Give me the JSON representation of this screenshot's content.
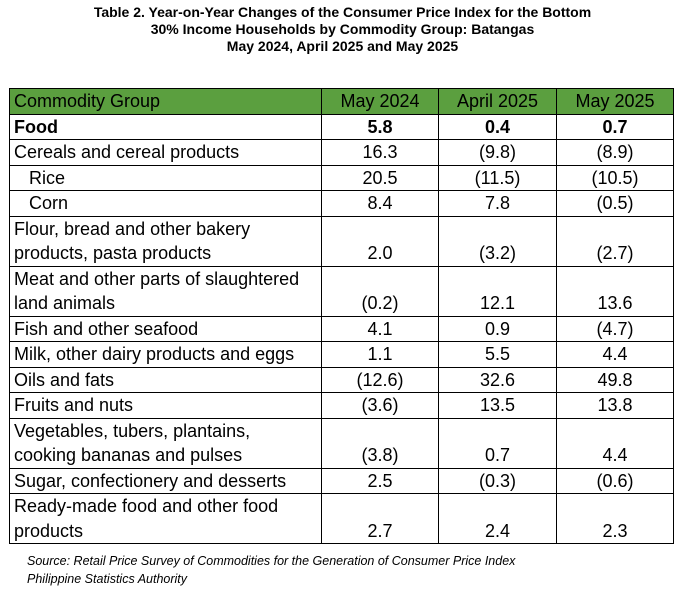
{
  "title": {
    "line1": "Table 2. Year-on-Year Changes of the Consumer Price Index for the Bottom",
    "line2": "30% Income Households by Commodity Group: Batangas",
    "line3": "May 2024, April 2025 and May 2025"
  },
  "table": {
    "header_color": "#5b9f3f",
    "headers": [
      "Commodity Group",
      "May 2024",
      "April 2025",
      "May 2025"
    ],
    "rows": [
      {
        "group": "Food",
        "may2024": "5.8",
        "apr2025": "0.4",
        "may2025": "0.7",
        "bold": true
      },
      {
        "group": "Cereals and cereal products",
        "may2024": "16.3",
        "apr2025": "(9.8)",
        "may2025": "(8.9)"
      },
      {
        "group": "Rice",
        "may2024": "20.5",
        "apr2025": "(11.5)",
        "may2025": "(10.5)",
        "indent": true
      },
      {
        "group": "Corn",
        "may2024": "8.4",
        "apr2025": "7.8",
        "may2025": "(0.5)",
        "indent": true
      },
      {
        "group": "Flour, bread and other bakery products, pasta products",
        "may2024": "2.0",
        "apr2025": "(3.2)",
        "may2025": "(2.7)"
      },
      {
        "group": "Meat and other parts of slaughtered land animals",
        "may2024": "(0.2)",
        "apr2025": "12.1",
        "may2025": "13.6"
      },
      {
        "group": "Fish and other seafood",
        "may2024": "4.1",
        "apr2025": "0.9",
        "may2025": "(4.7)"
      },
      {
        "group": "Milk, other dairy products and eggs",
        "may2024": "1.1",
        "apr2025": "5.5",
        "may2025": "4.4"
      },
      {
        "group": "Oils and fats",
        "may2024": "(12.6)",
        "apr2025": "32.6",
        "may2025": "49.8"
      },
      {
        "group": "Fruits and nuts",
        "may2024": "(3.6)",
        "apr2025": "13.5",
        "may2025": "13.8"
      },
      {
        "group": "Vegetables, tubers, plantains, cooking bananas and pulses",
        "may2024": "(3.8)",
        "apr2025": "0.7",
        "may2025": "4.4"
      },
      {
        "group": "Sugar, confectionery and desserts",
        "may2024": "2.5",
        "apr2025": "(0.3)",
        "may2025": "(0.6)"
      },
      {
        "group": "Ready-made food and other food products",
        "may2024": "2.7",
        "apr2025": "2.4",
        "may2025": "2.3"
      }
    ]
  },
  "source": {
    "line1": "Source: Retail Price Survey of Commodities for the Generation of Consumer Price Index",
    "line2": "Philippine Statistics Authority"
  }
}
